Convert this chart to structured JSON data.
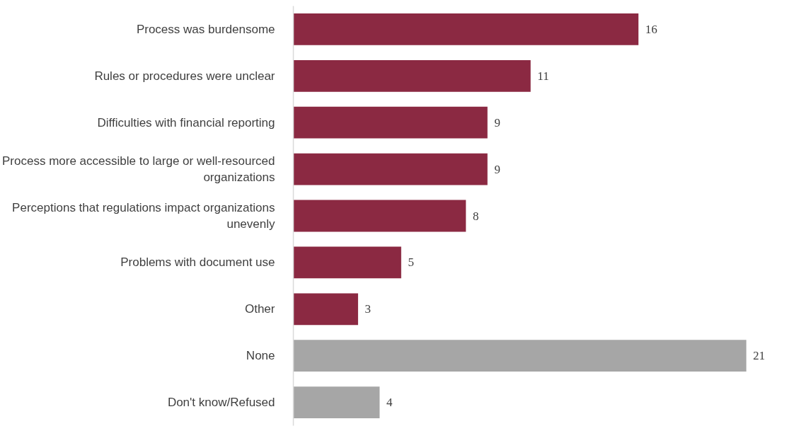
{
  "chart_data": {
    "type": "bar",
    "orientation": "horizontal",
    "categories": [
      "Process was burdensome",
      "Rules or procedures were unclear",
      "Difficulties with financial reporting",
      "Process more accessible to large or well-resourced organizations",
      "Perceptions that regulations impact organizations unevenly",
      "Problems with document use",
      "Other",
      "None",
      "Don't know/Refused"
    ],
    "values": [
      16,
      11,
      9,
      9,
      8,
      5,
      3,
      21,
      4
    ],
    "colors": [
      "#8b2942",
      "#8b2942",
      "#8b2942",
      "#8b2942",
      "#8b2942",
      "#8b2942",
      "#8b2942",
      "#a6a6a6",
      "#a6a6a6"
    ],
    "data_labels": true,
    "grid": false
  }
}
